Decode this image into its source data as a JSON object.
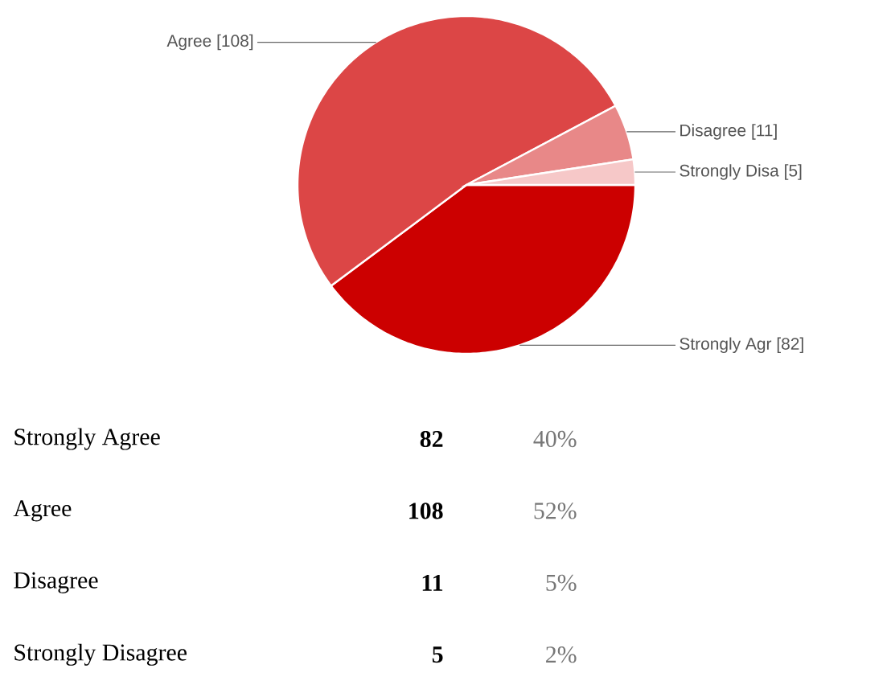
{
  "chart_data": [
    {
      "type": "pie",
      "categories": [
        "Strongly Agr",
        "Agree",
        "Disagree",
        "Strongly Disa"
      ],
      "values": [
        82,
        108,
        11,
        5
      ],
      "colors": [
        "#cc0000",
        "#dc4646",
        "#e88888",
        "#f6c8c8"
      ],
      "value_labels": [
        "[82]",
        "[108]",
        "[11]",
        "[5]"
      ]
    },
    {
      "type": "other",
      "categories": [
        "Strongly Agree",
        "Agree",
        "Disagree",
        "Strongly Disagree"
      ],
      "values": [
        82,
        108,
        11,
        5
      ],
      "data_labels": true,
      "annotations": [
        "40%",
        "52%",
        "5%",
        "2%"
      ]
    }
  ]
}
